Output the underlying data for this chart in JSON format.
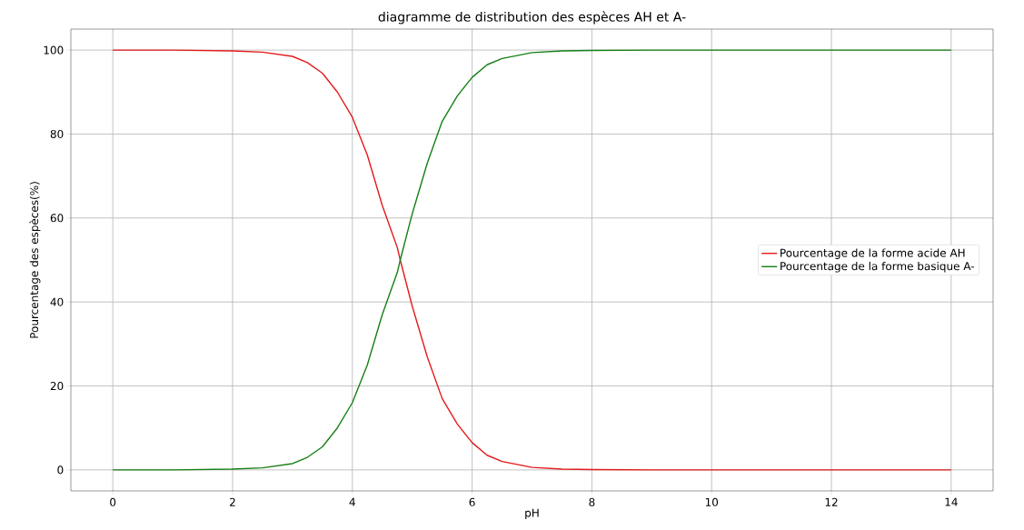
{
  "chart_data": {
    "type": "line",
    "title": "diagramme de distribution des espèces AH et A-",
    "xlabel": "pH",
    "ylabel": "Pourcentage des espèces(%)",
    "x": [
      0,
      1,
      2,
      2.5,
      3,
      3.25,
      3.5,
      3.75,
      4,
      4.25,
      4.5,
      4.75,
      4.8,
      5,
      5.25,
      5.5,
      5.75,
      6,
      6.25,
      6.5,
      7,
      7.5,
      8,
      9,
      10,
      12,
      14
    ],
    "series": [
      {
        "name": "Pourcentage de la forme acide AH",
        "color": "#e41a1c",
        "values": [
          100,
          100,
          99.8,
          99.5,
          98.5,
          97,
          94.5,
          90,
          84,
          75,
          63,
          53,
          50,
          39,
          27,
          17,
          11,
          6.5,
          3.5,
          2,
          0.6,
          0.2,
          0.1,
          0,
          0,
          0,
          0
        ]
      },
      {
        "name": "Pourcentage de la forme basique A-",
        "color": "#168016",
        "values": [
          0,
          0,
          0.2,
          0.5,
          1.5,
          3,
          5.5,
          10,
          16,
          25,
          37,
          47,
          50,
          61,
          73,
          83,
          89,
          93.5,
          96.5,
          98,
          99.4,
          99.8,
          99.9,
          100,
          100,
          100,
          100
        ]
      }
    ],
    "xlim": [
      -0.7,
      14.7
    ],
    "ylim": [
      -5,
      105
    ],
    "xticks": [
      0,
      2,
      4,
      6,
      8,
      10,
      12,
      14
    ],
    "yticks": [
      0,
      20,
      40,
      60,
      80,
      100
    ],
    "grid": true,
    "legend": "right",
    "line_style": "solid",
    "marker": "none"
  }
}
